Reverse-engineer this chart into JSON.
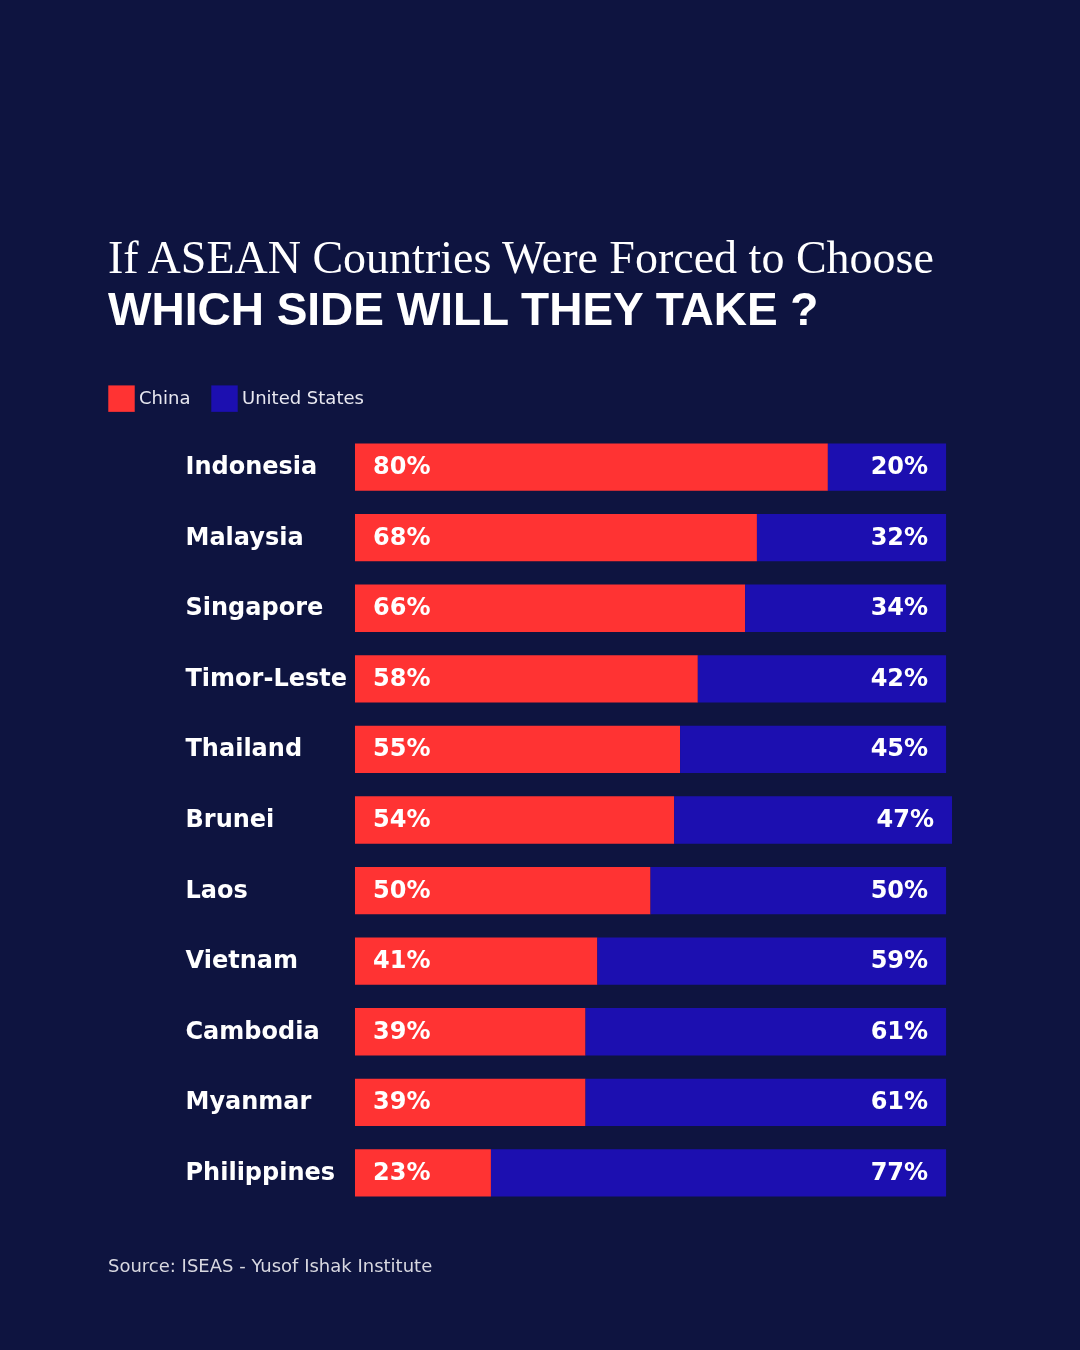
{
  "chart_data": {
    "type": "bar",
    "orientation": "horizontal",
    "stacked": true,
    "title": "If ASEAN Countries Were Forced to Choose",
    "subtitle": "WHICH SIDE WILL THEY TAKE ?",
    "categories": [
      "Indonesia",
      "Malaysia",
      "Singapore",
      "Timor-Leste",
      "Thailand",
      "Brunei",
      "Laos",
      "Vietnam",
      "Cambodia",
      "Myanmar",
      "Philippines"
    ],
    "series": [
      {
        "name": "China",
        "color": "#ff3333",
        "values": [
          80,
          68,
          66,
          58,
          55,
          54,
          50,
          41,
          39,
          39,
          23
        ],
        "value_labels": [
          "80%",
          "68%",
          "66%",
          "58%",
          "55%",
          "54%",
          "50%",
          "41%",
          "39%",
          "39%",
          "23%"
        ]
      },
      {
        "name": "United States",
        "color": "#1c0fb0",
        "values": [
          20,
          32,
          34,
          42,
          45,
          47,
          50,
          59,
          61,
          61,
          77
        ],
        "value_labels": [
          "20%",
          "32%",
          "34%",
          "42%",
          "45%",
          "47%",
          "50%",
          "59%",
          "61%",
          "61%",
          "77%"
        ]
      }
    ],
    "legend": "top left",
    "grid": false,
    "annotations": [
      "Source: ISEAS - Yusof Ishak Institute"
    ]
  }
}
